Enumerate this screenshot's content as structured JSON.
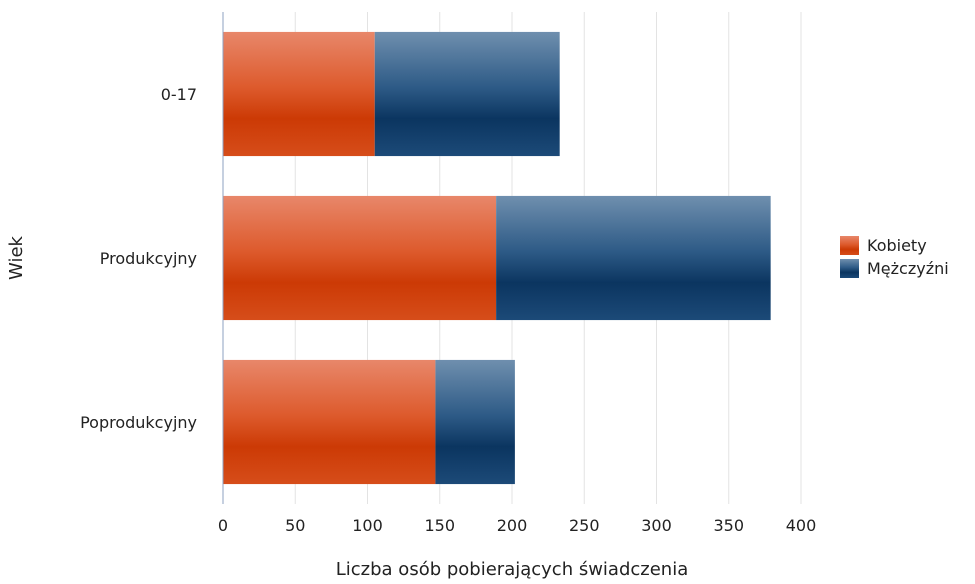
{
  "chart_data": {
    "type": "bar",
    "orientation": "horizontal",
    "stacked": true,
    "title": "",
    "xlabel": "Liczba osób pobierających świadczenia",
    "ylabel": "Wiek",
    "xlim": [
      0,
      400
    ],
    "x_ticks": [
      0,
      50,
      100,
      150,
      200,
      250,
      300,
      350,
      400
    ],
    "categories": [
      "0-17",
      "Produkcyjny",
      "Poprodukcyjny"
    ],
    "series": [
      {
        "name": "Kobiety",
        "values": [
          105,
          189,
          147
        ],
        "color": "#d84a1b"
      },
      {
        "name": "Mężczyźni",
        "values": [
          128,
          190,
          55
        ],
        "color": "#1b4b78"
      }
    ],
    "grid": true,
    "legend_position": "right"
  }
}
